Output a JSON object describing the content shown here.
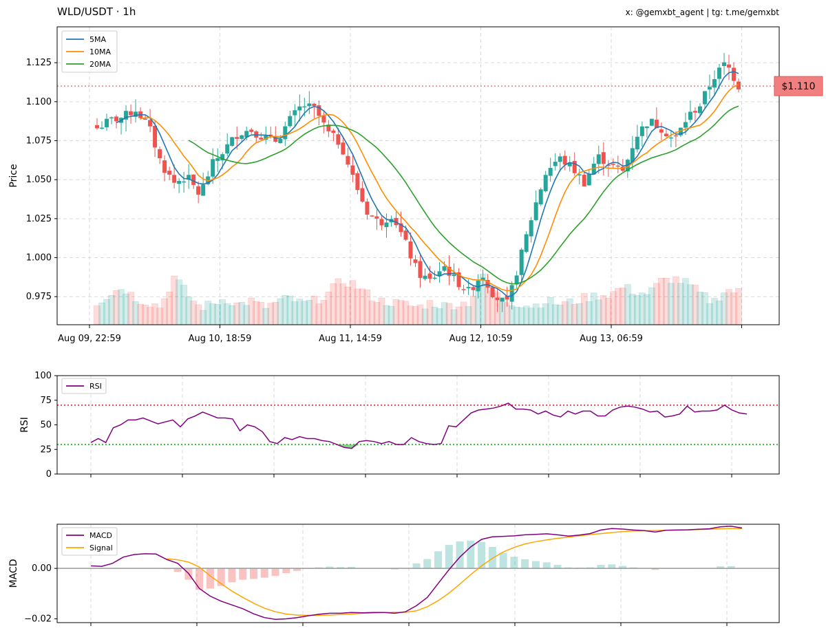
{
  "header": {
    "title": "WLD/USDT · 1h",
    "credit": "x: @gemxbt_agent | tg: t.me/gemxbt"
  },
  "colors": {
    "up": "#26a69a",
    "down": "#ef5350",
    "ma5": "#1f77b4",
    "ma10": "#ff8c00",
    "ma20": "#2ca02c",
    "rsi": "#800080",
    "macd": "#800080",
    "signal": "#ffa500",
    "overbought": "#e8474b",
    "oversold": "#3cb43c",
    "last_price_bg": "#f08080"
  },
  "chart_data": [
    {
      "type": "candlestick",
      "title": "WLD/USDT · 1h",
      "ylabel": "Price",
      "ylim": [
        0.957,
        1.148
      ],
      "yticks": [
        "0.975",
        "1.000",
        "1.025",
        "1.050",
        "1.075",
        "1.100",
        "1.125"
      ],
      "x_tick_labels": [
        "Aug 09, 22:59",
        "Aug 10, 18:59",
        "Aug 11, 14:59",
        "Aug 12, 10:59",
        "Aug 13, 06:59"
      ],
      "legend": [
        "5MA",
        "10MA",
        "20MA"
      ],
      "last_price": 1.11,
      "last_price_label": "$1.110",
      "anchors": [
        1.083,
        1.088,
        1.09,
        1.095,
        1.085,
        1.06,
        1.048,
        1.052,
        1.04,
        1.06,
        1.07,
        1.08,
        1.082,
        1.077,
        1.075,
        1.088,
        1.098,
        1.095,
        1.08,
        1.073,
        1.05,
        1.03,
        1.022,
        1.028,
        1.01,
        0.99,
        0.985,
        0.995,
        0.985,
        0.978,
        0.99,
        0.975,
        0.97,
        1.0,
        1.03,
        1.055,
        1.064,
        1.058,
        1.048,
        1.065,
        1.06,
        1.055,
        1.078,
        1.088,
        1.083,
        1.075,
        1.09,
        1.098,
        1.115,
        1.125,
        1.11
      ],
      "volume_anchors": [
        0.2,
        0.3,
        0.38,
        0.25,
        0.2,
        0.15,
        0.5,
        0.3,
        0.14,
        0.18,
        0.25,
        0.17,
        0.22,
        0.14,
        0.2,
        0.25,
        0.18,
        0.22,
        0.3,
        0.45,
        0.42,
        0.3,
        0.22,
        0.2,
        0.18,
        0.14,
        0.2,
        0.16,
        0.18,
        0.2,
        0.5,
        0.3,
        0.22,
        0.18,
        0.16,
        0.22,
        0.18,
        0.2,
        0.25,
        0.28,
        0.3,
        0.38,
        0.32,
        0.3,
        0.45,
        0.48,
        0.42,
        0.3,
        0.2,
        0.35,
        0.32
      ]
    },
    {
      "type": "line",
      "series": [
        {
          "name": "RSI",
          "values": [
            32,
            36,
            32,
            47,
            50,
            55,
            55,
            57,
            54,
            51,
            53,
            55,
            48,
            56,
            59,
            63,
            60,
            57,
            57,
            56,
            44,
            50,
            48,
            43,
            33,
            31,
            37,
            35,
            38,
            36,
            36,
            34,
            33,
            30,
            27,
            26,
            33,
            34,
            33,
            31,
            33,
            30,
            30,
            37,
            33,
            31,
            30,
            31,
            49,
            48,
            55,
            62,
            65,
            66,
            67,
            69,
            72,
            66,
            66,
            65,
            61,
            64,
            60,
            58,
            64,
            61,
            64,
            64,
            59,
            59,
            65,
            68,
            69,
            68,
            66,
            63,
            64,
            58,
            59,
            61,
            69,
            63,
            64,
            64,
            65,
            70,
            65,
            62,
            61
          ]
        }
      ],
      "ylabel": "RSI",
      "ylim": [
        0,
        100
      ],
      "yticks": [
        "0",
        "25",
        "50",
        "75",
        "100"
      ],
      "legend": [
        "RSI"
      ],
      "overbought": 70,
      "oversold": 30
    },
    {
      "type": "line",
      "series": [
        {
          "name": "MACD",
          "values": [
            0.001,
            0.0008,
            0.002,
            0.0045,
            0.0055,
            0.0058,
            0.0057,
            0.0035,
            0.002,
            -0.002,
            -0.008,
            -0.011,
            -0.013,
            -0.0145,
            -0.016,
            -0.018,
            -0.0195,
            -0.0202,
            -0.02,
            -0.0195,
            -0.0188,
            -0.0182,
            -0.0178,
            -0.0178,
            -0.0175,
            -0.0176,
            -0.0175,
            -0.0175,
            -0.0178,
            -0.0172,
            -0.0148,
            -0.0115,
            -0.006,
            -0.0005,
            0.0045,
            0.0085,
            0.0115,
            0.0125,
            0.0127,
            0.0129,
            0.0133,
            0.0135,
            0.0137,
            0.0133,
            0.0128,
            0.0132,
            0.0138,
            0.0152,
            0.0158,
            0.0156,
            0.0152,
            0.015,
            0.0144,
            0.0151,
            0.0152,
            0.0153,
            0.0155,
            0.0157,
            0.0165,
            0.0167,
            0.016
          ]
        },
        {
          "name": "Signal",
          "values": [
            null,
            null,
            null,
            null,
            null,
            null,
            null,
            0.0038,
            0.0034,
            0.0025,
            0.0005,
            -0.003,
            -0.006,
            -0.009,
            -0.0115,
            -0.0138,
            -0.0158,
            -0.0172,
            -0.0181,
            -0.0185,
            -0.0186,
            -0.0186,
            -0.0185,
            -0.0183,
            -0.0181,
            -0.0178,
            -0.0177,
            -0.0175,
            -0.0174,
            -0.0174,
            -0.0168,
            -0.0152,
            -0.0128,
            -0.0098,
            -0.0062,
            -0.0025,
            0.001,
            0.004,
            0.0065,
            0.0083,
            0.0097,
            0.0106,
            0.0113,
            0.0119,
            0.0124,
            0.0129,
            0.0134,
            0.0138,
            0.0142,
            0.0146,
            0.0148,
            0.0149,
            0.015,
            0.0151,
            0.0152,
            0.0153,
            0.0154,
            0.0155,
            0.0157,
            0.0158,
            0.0158
          ]
        }
      ],
      "ylabel": "MACD",
      "ylim": [
        -0.0215,
        0.0175
      ],
      "yticks": [
        "-0.02",
        "0.00"
      ],
      "legend": [
        "MACD",
        "Signal"
      ]
    }
  ]
}
